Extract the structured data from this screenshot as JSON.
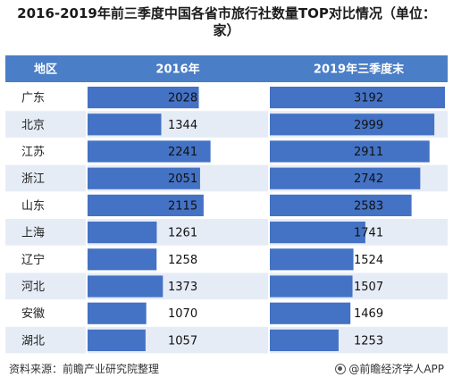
{
  "title": "2016-2019年前三季度中国各省市旅行社数量TOP对比情况（单位：家）",
  "chart_data": {
    "type": "bar",
    "orientation": "horizontal",
    "headers": [
      "地区",
      "2016年",
      "2019年三季度末"
    ],
    "categories": [
      "广东",
      "北京",
      "江苏",
      "浙江",
      "山东",
      "上海",
      "辽宁",
      "河北",
      "安徽",
      "湖北"
    ],
    "series": [
      {
        "name": "2016年",
        "values": [
          2028,
          1344,
          2241,
          2051,
          2115,
          1261,
          1258,
          1373,
          1070,
          1057
        ]
      },
      {
        "name": "2019年三季度末",
        "values": [
          3192,
          2999,
          2911,
          2742,
          2583,
          1741,
          1524,
          1507,
          1469,
          1253
        ]
      }
    ],
    "colors": {
      "header_bg": "#4a7ec7",
      "header_text": "#ffffff",
      "row_odd": "#ffffff",
      "row_even": "#e6ecf6",
      "bar": "#4472c4",
      "grid": "#ffffff"
    }
  },
  "footer": {
    "source": "资料来源：前瞻产业研究院整理",
    "brand": "@前瞻经济学人APP",
    "brand_icon": "logo-circle-icon"
  }
}
